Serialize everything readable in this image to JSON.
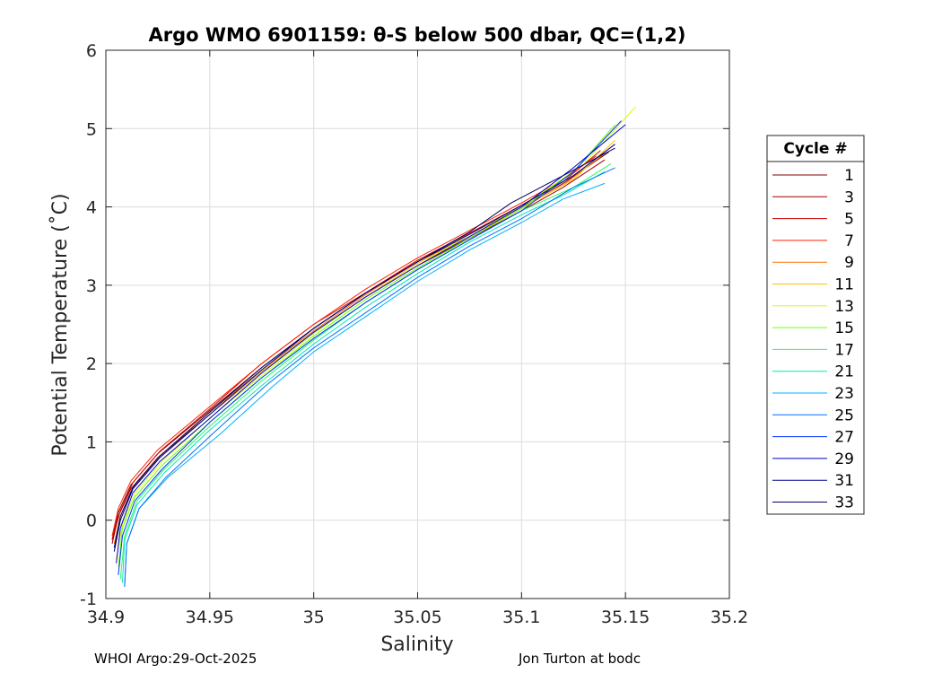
{
  "chart_data": {
    "type": "line",
    "title": "Argo WMO 6901159: θ-S below 500 dbar,  QC=(1,2)",
    "xlabel": "Salinity",
    "ylabel": "Potential Temperature (˚C)",
    "xlim": [
      34.9,
      35.2
    ],
    "ylim": [
      -1,
      6
    ],
    "xticks": [
      34.9,
      34.95,
      35,
      35.05,
      35.1,
      35.15,
      35.2
    ],
    "xtick_labels": [
      "34.9",
      "34.95",
      "35",
      "35.05",
      "35.1",
      "35.15",
      "35.2"
    ],
    "yticks": [
      -1,
      0,
      1,
      2,
      3,
      4,
      5,
      6
    ],
    "ytick_labels": [
      "-1",
      "0",
      "1",
      "2",
      "3",
      "4",
      "5",
      "6"
    ],
    "grid": true,
    "legend_title": "Cycle #",
    "legend_position": "right-outside",
    "series": [
      {
        "name": "1",
        "color": "#800000",
        "x": [
          34.903,
          34.906,
          34.912,
          34.925,
          34.95,
          34.975,
          35.0,
          35.025,
          35.05,
          35.075,
          35.1,
          35.12,
          35.142
        ],
        "y": [
          -0.25,
          0.1,
          0.45,
          0.85,
          1.4,
          1.95,
          2.45,
          2.9,
          3.3,
          3.65,
          4.0,
          4.3,
          4.7
        ]
      },
      {
        "name": "3",
        "color": "#a00000",
        "x": [
          34.903,
          34.906,
          34.912,
          34.925,
          34.95,
          34.975,
          35.0,
          35.025,
          35.05,
          35.075,
          35.1,
          35.12,
          35.14
        ],
        "y": [
          -0.3,
          0.05,
          0.4,
          0.8,
          1.35,
          1.9,
          2.4,
          2.85,
          3.25,
          3.6,
          3.95,
          4.25,
          4.6
        ]
      },
      {
        "name": "5",
        "color": "#cc0000",
        "x": [
          34.903,
          34.907,
          34.913,
          34.926,
          34.95,
          34.974,
          35.0,
          35.026,
          35.05,
          35.076,
          35.1,
          35.12,
          35.138
        ],
        "y": [
          -0.25,
          0.12,
          0.48,
          0.88,
          1.42,
          1.98,
          2.5,
          2.92,
          3.32,
          3.68,
          4.02,
          4.32,
          4.72
        ]
      },
      {
        "name": "7",
        "color": "#ff2000",
        "x": [
          34.903,
          34.906,
          34.912,
          34.925,
          34.95,
          34.975,
          35.0,
          35.025,
          35.05,
          35.075,
          35.1,
          35.12,
          35.136
        ],
        "y": [
          -0.2,
          0.15,
          0.5,
          0.9,
          1.45,
          2.0,
          2.5,
          2.95,
          3.35,
          3.7,
          4.05,
          4.35,
          4.65
        ]
      },
      {
        "name": "9",
        "color": "#ff7000",
        "x": [
          34.904,
          34.907,
          34.913,
          34.926,
          34.95,
          34.975,
          35.0,
          35.025,
          35.05,
          35.075,
          35.1,
          35.12,
          35.14
        ],
        "y": [
          -0.3,
          0.05,
          0.42,
          0.82,
          1.38,
          1.92,
          2.42,
          2.88,
          3.3,
          3.62,
          3.98,
          4.28,
          4.68
        ]
      },
      {
        "name": "11",
        "color": "#ffc000",
        "x": [
          34.904,
          34.907,
          34.913,
          34.926,
          34.95,
          34.975,
          35.0,
          35.025,
          35.05,
          35.075,
          35.1,
          35.125,
          35.145
        ],
        "y": [
          -0.4,
          0.0,
          0.4,
          0.8,
          1.35,
          1.9,
          2.4,
          2.85,
          3.28,
          3.62,
          3.98,
          4.35,
          4.85
        ]
      },
      {
        "name": "13",
        "color": "#d0ff00",
        "x": [
          34.905,
          34.908,
          34.914,
          34.927,
          34.95,
          34.975,
          35.0,
          35.025,
          35.05,
          35.075,
          35.1,
          35.13,
          35.155
        ],
        "y": [
          -0.5,
          -0.05,
          0.35,
          0.75,
          1.3,
          1.85,
          2.38,
          2.85,
          3.25,
          3.65,
          4.0,
          4.55,
          5.28
        ]
      },
      {
        "name": "15",
        "color": "#70ff00",
        "x": [
          34.906,
          34.908,
          34.914,
          34.927,
          34.95,
          34.975,
          35.0,
          35.025,
          35.05,
          35.075,
          35.1,
          35.125,
          35.145
        ],
        "y": [
          -0.6,
          -0.1,
          0.3,
          0.7,
          1.25,
          1.82,
          2.35,
          2.82,
          3.22,
          3.6,
          3.98,
          4.45,
          5.05
        ]
      },
      {
        "name": "17",
        "color": "#20ff60",
        "x": [
          34.907,
          34.909,
          34.915,
          34.928,
          34.95,
          34.975,
          35.0,
          35.025,
          35.05,
          35.075,
          35.1,
          35.125,
          35.143
        ],
        "y": [
          -0.75,
          -0.2,
          0.25,
          0.65,
          1.2,
          1.78,
          2.3,
          2.78,
          3.2,
          3.58,
          3.95,
          4.25,
          4.55
        ]
      },
      {
        "name": "21",
        "color": "#00e8b0",
        "x": [
          34.908,
          34.909,
          34.915,
          34.928,
          34.95,
          34.975,
          35.0,
          35.025,
          35.05,
          35.075,
          35.1,
          35.12,
          35.14
        ],
        "y": [
          -0.8,
          -0.25,
          0.2,
          0.6,
          1.15,
          1.72,
          2.25,
          2.72,
          3.15,
          3.55,
          3.9,
          4.15,
          4.45
        ]
      },
      {
        "name": "23",
        "color": "#00b0ff",
        "x": [
          34.909,
          34.91,
          34.916,
          34.93,
          34.955,
          34.98,
          35.0,
          35.025,
          35.05,
          35.075,
          35.1,
          35.12,
          35.14
        ],
        "y": [
          -0.85,
          -0.3,
          0.15,
          0.55,
          1.1,
          1.7,
          2.15,
          2.6,
          3.05,
          3.45,
          3.8,
          4.1,
          4.3
        ]
      },
      {
        "name": "25",
        "color": "#0070ff",
        "x": [
          34.909,
          34.91,
          34.916,
          34.929,
          34.952,
          34.977,
          35.0,
          35.025,
          35.05,
          35.075,
          35.1,
          35.125,
          35.145
        ],
        "y": [
          -0.85,
          -0.3,
          0.15,
          0.55,
          1.12,
          1.72,
          2.2,
          2.65,
          3.1,
          3.5,
          3.85,
          4.25,
          4.5
        ]
      },
      {
        "name": "27",
        "color": "#0030ff",
        "x": [
          34.906,
          34.908,
          34.914,
          34.927,
          34.95,
          34.975,
          35.0,
          35.025,
          35.05,
          35.075,
          35.1,
          35.125,
          35.148
        ],
        "y": [
          -0.7,
          -0.2,
          0.25,
          0.65,
          1.25,
          1.82,
          2.32,
          2.78,
          3.2,
          3.58,
          3.95,
          4.45,
          5.1
        ]
      },
      {
        "name": "29",
        "color": "#0000d0",
        "x": [
          34.905,
          34.907,
          34.913,
          34.926,
          34.95,
          34.975,
          35.0,
          35.025,
          35.05,
          35.075,
          35.1,
          35.125,
          35.15
        ],
        "y": [
          -0.55,
          -0.1,
          0.35,
          0.75,
          1.3,
          1.88,
          2.4,
          2.85,
          3.25,
          3.62,
          4.0,
          4.5,
          5.05
        ]
      },
      {
        "name": "31",
        "color": "#00008c",
        "x": [
          34.904,
          34.907,
          34.913,
          34.926,
          34.95,
          34.975,
          35.0,
          35.025,
          35.05,
          35.075,
          35.1,
          35.125,
          35.145
        ],
        "y": [
          -0.4,
          0.0,
          0.4,
          0.8,
          1.35,
          1.92,
          2.45,
          2.9,
          3.3,
          3.65,
          4.02,
          4.4,
          4.8
        ]
      },
      {
        "name": "33",
        "color": "#000064",
        "x": [
          34.904,
          34.907,
          34.913,
          34.926,
          34.95,
          34.975,
          35.0,
          35.025,
          35.05,
          35.075,
          35.095,
          35.12,
          35.145
        ],
        "y": [
          -0.35,
          0.05,
          0.42,
          0.82,
          1.38,
          1.95,
          2.45,
          2.9,
          3.3,
          3.68,
          4.05,
          4.4,
          4.75
        ]
      }
    ]
  },
  "footer": {
    "left": "WHOI Argo:29-Oct-2025",
    "right": "Jon Turton at bodc"
  }
}
